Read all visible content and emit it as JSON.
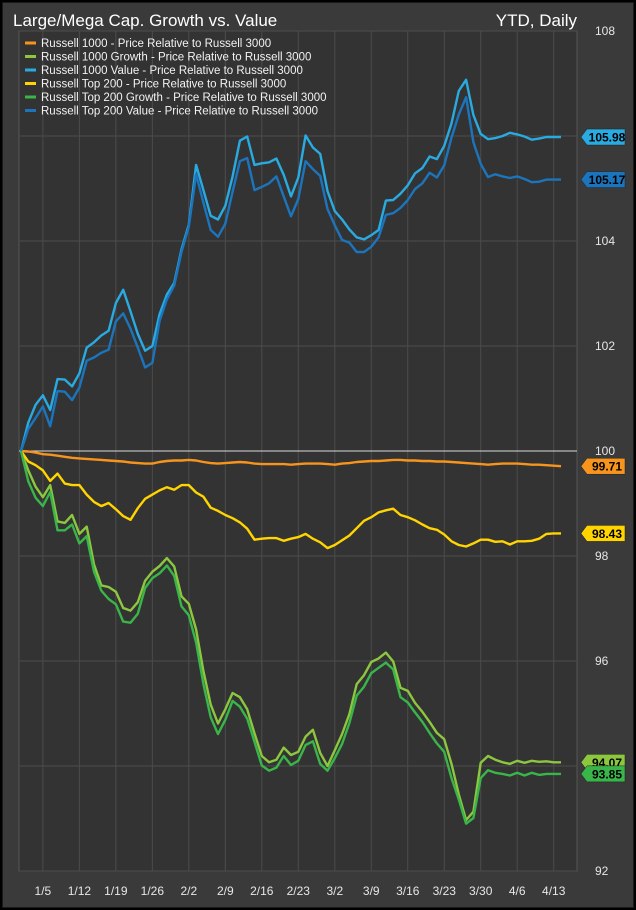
{
  "header": {
    "title": "Large/Mega Cap. Growth vs. Value",
    "subtitle": "YTD, Daily"
  },
  "chart_data": {
    "type": "line",
    "title": "Large/Mega Cap. Growth vs. Value",
    "subtitle": "YTD, Daily",
    "xlabel": "",
    "ylabel": "",
    "ylim": [
      92,
      108
    ],
    "yticks": [
      92,
      94,
      96,
      98,
      100,
      102,
      104,
      106,
      108
    ],
    "ytick_labels": [
      "92",
      "",
      "96",
      "98",
      "100",
      "102",
      "104",
      "",
      "108"
    ],
    "reference_line": 100,
    "grid": true,
    "legend": "top-left",
    "x_tick_labels": [
      "1/5",
      "1/12",
      "1/19",
      "1/26",
      "2/2",
      "2/9",
      "2/16",
      "2/23",
      "3/2",
      "3/9",
      "3/16",
      "3/23",
      "3/30",
      "4/6",
      "4/13"
    ],
    "x_tick_index": [
      3,
      8,
      13,
      18,
      23,
      28,
      33,
      38,
      43,
      48,
      53,
      58,
      63,
      68,
      73
    ],
    "n_points": 75,
    "series": [
      {
        "name": "Russell 1000 - Price Relative to Russell 3000",
        "color": "#f7941d",
        "last_label": "99.71",
        "values": [
          100,
          99.99,
          99.97,
          99.94,
          99.93,
          99.91,
          99.89,
          99.87,
          99.86,
          99.85,
          99.84,
          99.83,
          99.82,
          99.81,
          99.8,
          99.78,
          99.77,
          99.76,
          99.76,
          99.79,
          99.81,
          99.82,
          99.82,
          99.83,
          99.82,
          99.79,
          99.77,
          99.76,
          99.77,
          99.78,
          99.79,
          99.78,
          99.76,
          99.75,
          99.75,
          99.75,
          99.75,
          99.74,
          99.75,
          99.76,
          99.76,
          99.76,
          99.75,
          99.74,
          99.76,
          99.77,
          99.79,
          99.8,
          99.81,
          99.81,
          99.82,
          99.83,
          99.83,
          99.82,
          99.82,
          99.81,
          99.81,
          99.8,
          99.8,
          99.79,
          99.78,
          99.77,
          99.76,
          99.75,
          99.74,
          99.75,
          99.76,
          99.76,
          99.76,
          99.75,
          99.74,
          99.74,
          99.73,
          99.72,
          99.71
        ]
      },
      {
        "name": "Russell 1000 Growth - Price Relative to Russell 3000",
        "color": "#8dc63f",
        "last_label": "94.07",
        "values": [
          100,
          99.63,
          99.32,
          99.12,
          99.35,
          98.66,
          98.63,
          98.78,
          98.42,
          98.56,
          97.84,
          97.44,
          97.41,
          97.32,
          97.01,
          96.96,
          97.12,
          97.53,
          97.7,
          97.81,
          97.96,
          97.8,
          97.23,
          97.09,
          96.6,
          95.81,
          95.17,
          94.81,
          95.08,
          95.39,
          95.31,
          95.08,
          94.62,
          94.19,
          94.07,
          94.12,
          94.35,
          94.21,
          94.27,
          94.56,
          94.69,
          94.25,
          94.0,
          94.3,
          94.61,
          94.99,
          95.56,
          95.73,
          95.98,
          96.05,
          96.16,
          95.99,
          95.49,
          95.43,
          95.2,
          95.03,
          94.84,
          94.63,
          94.51,
          94.04,
          93.46,
          92.97,
          93.13,
          94.06,
          94.19,
          94.12,
          94.07,
          94.04,
          94.1,
          94.06,
          94.1,
          94.08,
          94.09,
          94.07,
          94.07
        ]
      },
      {
        "name": "Russell 1000 Value - Price Relative to Russell 3000",
        "color": "#29abe2",
        "last_label": "105.98",
        "values": [
          100,
          100.54,
          100.88,
          101.06,
          100.78,
          101.37,
          101.36,
          101.23,
          101.48,
          101.97,
          102.07,
          102.2,
          102.29,
          102.82,
          103.07,
          102.66,
          102.23,
          101.91,
          102.0,
          102.61,
          102.98,
          103.2,
          103.84,
          104.31,
          105.45,
          104.97,
          104.48,
          104.41,
          104.67,
          105.23,
          105.91,
          105.99,
          105.45,
          105.48,
          105.5,
          105.57,
          105.26,
          104.85,
          105.21,
          106.01,
          105.78,
          105.66,
          104.95,
          104.57,
          104.41,
          104.22,
          104.07,
          104.03,
          104.11,
          104.21,
          104.77,
          104.78,
          104.9,
          105.06,
          105.29,
          105.39,
          105.61,
          105.56,
          105.81,
          106.24,
          106.86,
          107.07,
          106.4,
          106.04,
          105.94,
          105.96,
          106.0,
          106.06,
          106.03,
          105.99,
          105.93,
          105.95,
          105.98,
          105.98,
          105.98
        ]
      },
      {
        "name": "Russell Top 200 - Price Relative to Russell 3000",
        "color": "#ffd400",
        "last_label": "98.43",
        "values": [
          100,
          99.8,
          99.73,
          99.63,
          99.43,
          99.57,
          99.38,
          99.35,
          99.35,
          99.17,
          99.03,
          98.95,
          99.01,
          98.89,
          98.76,
          98.69,
          98.91,
          99.09,
          99.17,
          99.25,
          99.31,
          99.26,
          99.35,
          99.35,
          99.21,
          99.13,
          98.92,
          98.86,
          98.78,
          98.72,
          98.64,
          98.52,
          98.31,
          98.33,
          98.34,
          98.34,
          98.29,
          98.33,
          98.36,
          98.42,
          98.33,
          98.26,
          98.15,
          98.21,
          98.3,
          98.39,
          98.53,
          98.67,
          98.74,
          98.83,
          98.87,
          98.9,
          98.78,
          98.74,
          98.68,
          98.6,
          98.53,
          98.5,
          98.41,
          98.28,
          98.21,
          98.18,
          98.24,
          98.31,
          98.31,
          98.27,
          98.28,
          98.22,
          98.28,
          98.28,
          98.29,
          98.33,
          98.42,
          98.43,
          98.43
        ]
      },
      {
        "name": "Russell Top 200 Growth - Price Relative to Russell 3000",
        "color": "#39b54a",
        "last_label": "93.85",
        "values": [
          100,
          99.42,
          99.11,
          98.95,
          99.22,
          98.49,
          98.49,
          98.6,
          98.24,
          98.38,
          97.7,
          97.34,
          97.18,
          97.08,
          96.75,
          96.73,
          96.9,
          97.39,
          97.58,
          97.67,
          97.82,
          97.62,
          97.04,
          96.87,
          96.35,
          95.56,
          94.93,
          94.61,
          94.88,
          95.24,
          95.13,
          94.9,
          94.46,
          94.01,
          93.91,
          93.97,
          94.19,
          94.02,
          94.1,
          94.4,
          94.47,
          94.04,
          93.91,
          94.15,
          94.42,
          94.82,
          95.34,
          95.51,
          95.77,
          95.87,
          95.97,
          95.84,
          95.31,
          95.21,
          95.02,
          94.84,
          94.63,
          94.43,
          94.27,
          93.77,
          93.36,
          92.9,
          93.01,
          93.77,
          93.92,
          93.87,
          93.85,
          93.82,
          93.87,
          93.82,
          93.87,
          93.83,
          93.85,
          93.85,
          93.85
        ]
      },
      {
        "name": "Russell Top 200 Value - Price Relative to Russell 3000",
        "color": "#1c75bc",
        "last_label": "105.17",
        "values": [
          100,
          100.42,
          100.63,
          100.85,
          100.47,
          101.14,
          101.13,
          100.97,
          101.21,
          101.72,
          101.78,
          101.87,
          101.93,
          102.47,
          102.62,
          102.33,
          101.97,
          101.59,
          101.68,
          102.48,
          102.89,
          103.15,
          103.79,
          104.27,
          105.27,
          104.73,
          104.21,
          104.08,
          104.33,
          104.94,
          105.52,
          105.58,
          104.97,
          105.03,
          105.1,
          105.23,
          104.85,
          104.47,
          104.8,
          105.52,
          105.37,
          105.24,
          104.61,
          104.3,
          104.02,
          103.97,
          103.79,
          103.79,
          103.89,
          104.07,
          104.5,
          104.53,
          104.63,
          104.78,
          104.99,
          105.1,
          105.3,
          105.21,
          105.44,
          105.97,
          106.41,
          106.74,
          105.88,
          105.47,
          105.22,
          105.27,
          105.23,
          105.2,
          105.23,
          105.18,
          105.12,
          105.13,
          105.17,
          105.17,
          105.17
        ]
      }
    ]
  }
}
